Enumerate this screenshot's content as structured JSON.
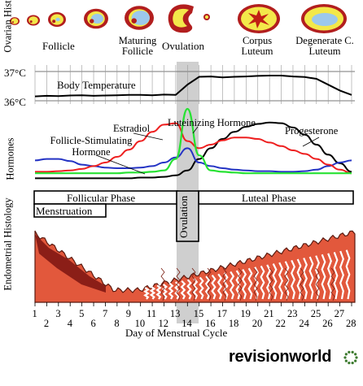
{
  "panels": {
    "ovarian": {
      "title": "Ovarian Histology",
      "stages": [
        {
          "name": "Follicle",
          "days": "1-6"
        },
        {
          "name": "Maturing Follicle",
          "days": "7-12"
        },
        {
          "name": "Ovulation",
          "days": "13-14"
        },
        {
          "name": "Corpus Luteum",
          "days": "15-24"
        },
        {
          "name": "Degenerate C. Luteum",
          "days": "25-28"
        }
      ]
    },
    "temperature": {
      "ticks": [
        "37°C",
        "36°C"
      ],
      "label": "Body Temperature"
    },
    "hormones": {
      "title": "Hormones",
      "labels": {
        "fsh": "Follicle-Stimulating Hormone",
        "estradiol": "Estradiol",
        "lh": "Luteinizing  Hormone",
        "progesterone": "Progesterone"
      }
    },
    "phases": {
      "follicular": "Follicular Phase",
      "luteal": "Luteal Phase",
      "ovulation": "Ovulation",
      "menstruation": "Menstruation"
    },
    "endometrial": {
      "title": "Endometrial Histology"
    }
  },
  "axis": {
    "days": [
      "1",
      "2",
      "3",
      "4",
      "5",
      "6",
      "7",
      "8",
      "9",
      "10",
      "11",
      "12",
      "13",
      "14",
      "15",
      "16",
      "17",
      "18",
      "19",
      "20",
      "21",
      "22",
      "23",
      "24",
      "25",
      "26",
      "27",
      "28"
    ],
    "label": "Day of Menstrual Cycle"
  },
  "brand": {
    "name": "revisionworld"
  },
  "colors": {
    "follicle_outer": "#b21e1e",
    "follicle_fill": "#f3e84a",
    "follicle_antrum": "#9cc8ec",
    "corpus_star": "#c01f14",
    "temperature": "#000000",
    "fsh": "#2433c4",
    "lh": "#27e233",
    "estradiol": "#ee1f1f",
    "progesterone": "#000000",
    "ovulation_band": "#cfcfcf",
    "endometrium": "#e2583c",
    "endometrium_dark": "#7b1410",
    "brand_dots": "#3c7a2e"
  },
  "series": {
    "temperature_c": [
      36.15,
      36.17,
      36.16,
      36.18,
      36.19,
      36.17,
      36.18,
      36.19,
      36.2,
      36.2,
      36.19,
      36.21,
      36.2,
      36.55,
      36.82,
      36.83,
      36.8,
      36.82,
      36.83,
      36.85,
      36.86,
      36.86,
      36.83,
      36.81,
      36.75,
      36.55,
      36.35,
      36.2
    ],
    "fsh_rel": [
      0.28,
      0.3,
      0.3,
      0.27,
      0.22,
      0.2,
      0.18,
      0.17,
      0.17,
      0.18,
      0.2,
      0.25,
      0.32,
      0.45,
      0.25,
      0.2,
      0.17,
      0.15,
      0.14,
      0.13,
      0.13,
      0.12,
      0.12,
      0.13,
      0.15,
      0.2,
      0.25,
      0.28
    ],
    "lh_rel": [
      0.1,
      0.1,
      0.1,
      0.1,
      0.1,
      0.1,
      0.1,
      0.1,
      0.11,
      0.11,
      0.12,
      0.14,
      0.3,
      1.0,
      0.35,
      0.14,
      0.12,
      0.11,
      0.1,
      0.1,
      0.1,
      0.1,
      0.1,
      0.1,
      0.1,
      0.1,
      0.1,
      0.1
    ],
    "estradiol_rel": [
      0.12,
      0.12,
      0.13,
      0.14,
      0.16,
      0.2,
      0.25,
      0.33,
      0.43,
      0.55,
      0.68,
      0.78,
      0.8,
      0.55,
      0.45,
      0.5,
      0.56,
      0.6,
      0.6,
      0.58,
      0.53,
      0.48,
      0.42,
      0.37,
      0.3,
      0.22,
      0.15,
      0.1
    ],
    "progesterone_rel": [
      0.03,
      0.03,
      0.03,
      0.03,
      0.03,
      0.03,
      0.03,
      0.03,
      0.03,
      0.04,
      0.04,
      0.05,
      0.07,
      0.14,
      0.3,
      0.45,
      0.58,
      0.68,
      0.75,
      0.79,
      0.81,
      0.8,
      0.74,
      0.64,
      0.5,
      0.36,
      0.24,
      0.12
    ]
  }
}
